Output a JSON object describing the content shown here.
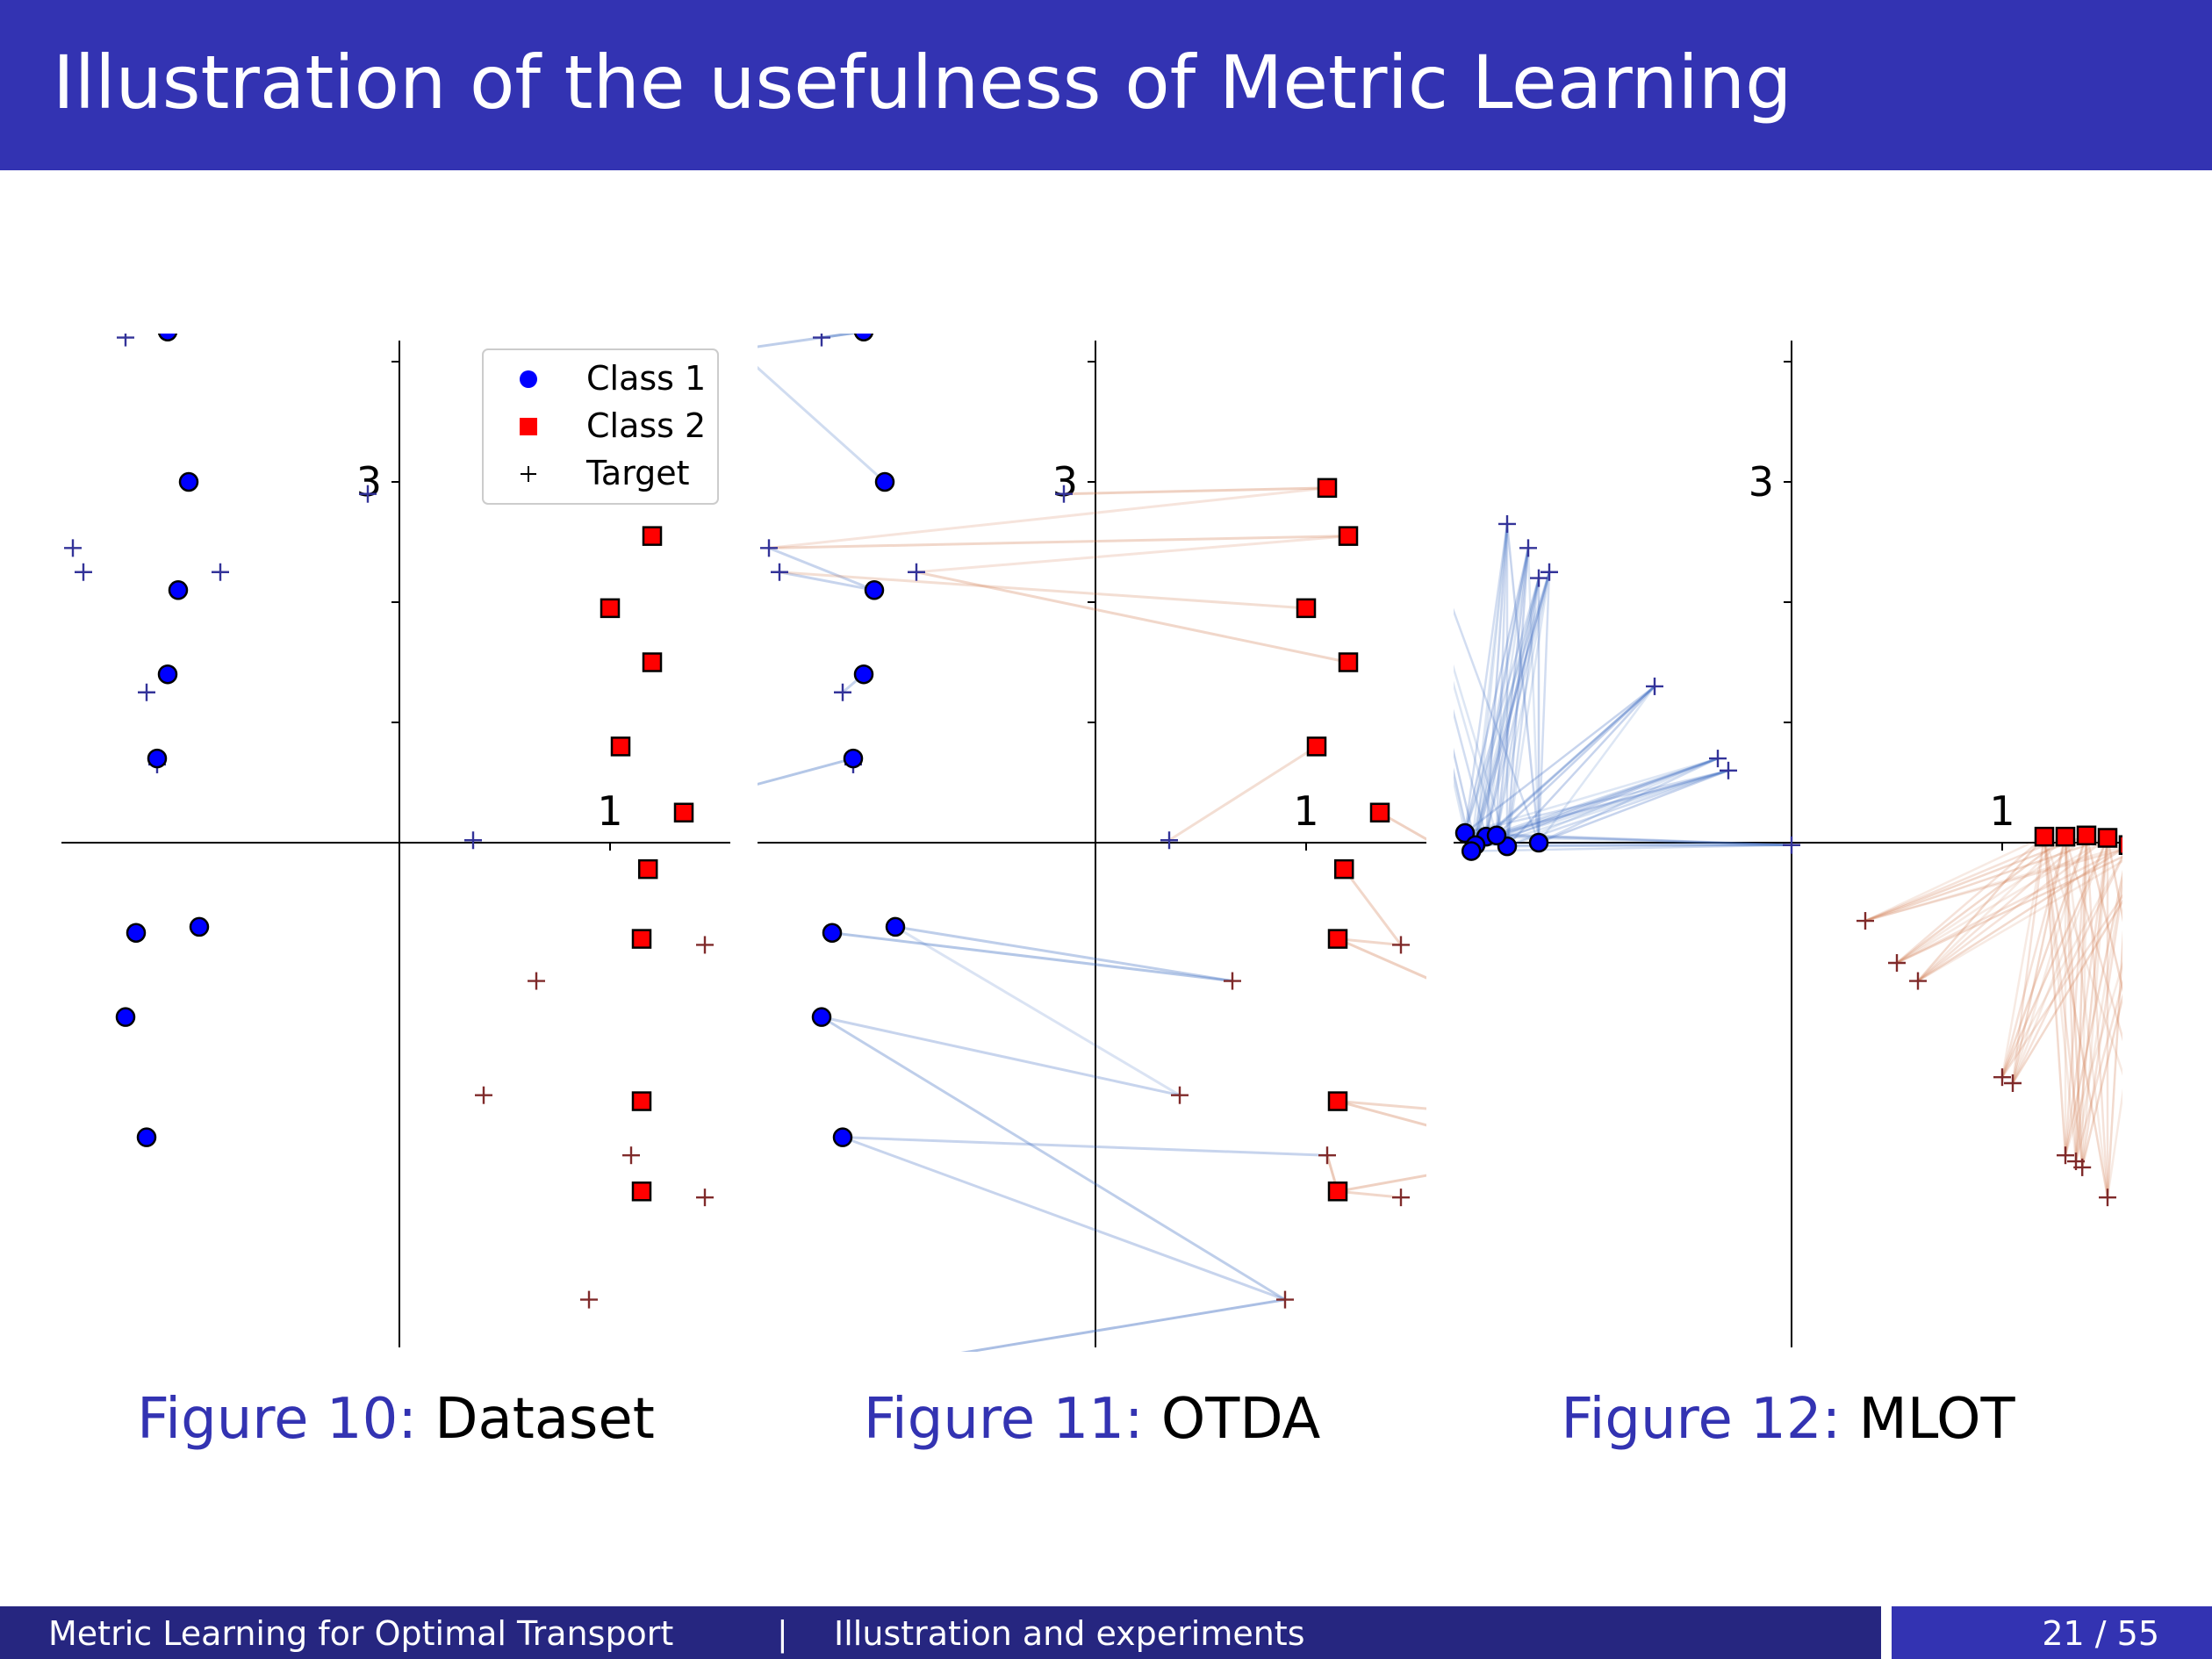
{
  "slide": {
    "title": "Illustration of the usefulness of Metric Learning"
  },
  "legend": {
    "class1": "Class 1",
    "class2": "Class 2",
    "target": "Target"
  },
  "colors": {
    "accent": "#3333b2",
    "footer_dark": "#262680",
    "class1": "#0000ff",
    "class2": "#ff0000",
    "target_blue": "#333399",
    "target_red": "#7f2a2a",
    "link_blue": "#4472c4",
    "link_red": "#d07a50"
  },
  "figures": [
    {
      "label": "Figure 10:",
      "name": "Dataset"
    },
    {
      "label": "Figure 11:",
      "name": "OTDA"
    },
    {
      "label": "Figure 12:",
      "name": "MLOT"
    }
  ],
  "footer": {
    "title": "Metric Learning for Optimal Transport",
    "separator": "|",
    "section": "Illustration and experiments",
    "page": "21 / 55"
  },
  "chart_data": [
    {
      "type": "scatter",
      "title": "Dataset",
      "tick_labels": {
        "x": [
          "1"
        ],
        "y": [
          "3"
        ]
      },
      "xlim": [
        -3.2,
        3.2
      ],
      "ylim": [
        -4.6,
        4.5
      ],
      "series": [
        {
          "name": "Class 1",
          "marker": "circle",
          "color": "#0000ff",
          "points": [
            [
              -1.1,
              4.25
            ],
            [
              -1.0,
              3.0
            ],
            [
              -1.05,
              2.1
            ],
            [
              -1.1,
              1.4
            ],
            [
              -1.15,
              0.7
            ],
            [
              -1.25,
              -0.75
            ],
            [
              -0.95,
              -0.7
            ],
            [
              -1.3,
              -1.45
            ],
            [
              -1.2,
              -2.45
            ],
            [
              -1.35,
              -4.45
            ]
          ]
        },
        {
          "name": "Class 2",
          "marker": "square",
          "color": "#ff0000",
          "points": [
            [
              1.1,
              2.95
            ],
            [
              1.2,
              2.55
            ],
            [
              1.0,
              1.95
            ],
            [
              1.2,
              1.5
            ],
            [
              1.05,
              0.8
            ],
            [
              1.35,
              0.25
            ],
            [
              1.18,
              -0.22
            ],
            [
              1.15,
              -0.8
            ],
            [
              1.15,
              -2.15
            ],
            [
              1.15,
              -2.9
            ]
          ]
        },
        {
          "name": "Target",
          "marker": "plus",
          "points_class1": [
            [
              -1.7,
              4.1
            ],
            [
              -1.3,
              4.2
            ],
            [
              -0.15,
              2.9
            ],
            [
              -1.55,
              2.45
            ],
            [
              -1.5,
              2.25
            ],
            [
              -0.85,
              2.25
            ],
            [
              -1.2,
              1.25
            ],
            [
              -1.15,
              0.65
            ],
            [
              -2.0,
              0.3
            ],
            [
              0.35,
              0.02
            ]
          ],
          "points_class2": [
            [
              2.0,
              -0.4
            ],
            [
              1.45,
              -0.85
            ],
            [
              0.65,
              -1.15
            ],
            [
              2.45,
              -1.8
            ],
            [
              0.4,
              -2.1
            ],
            [
              2.85,
              -2.4
            ],
            [
              1.1,
              -2.6
            ],
            [
              2.1,
              -2.6
            ],
            [
              1.45,
              -2.95
            ],
            [
              0.9,
              -3.8
            ]
          ]
        }
      ]
    },
    {
      "type": "scatter",
      "title": "OTDA",
      "tick_labels": {
        "x": [
          "1"
        ],
        "y": [
          "3"
        ]
      },
      "note": "Same points as Dataset with optimal-transport coupling lines between source and target points",
      "links": "source-to-target transport couplings"
    },
    {
      "type": "scatter",
      "title": "MLOT",
      "tick_labels": {
        "x": [
          "1"
        ],
        "y": [
          "3"
        ]
      },
      "series": [
        {
          "name": "Class 1",
          "marker": "circle",
          "color": "#0000ff",
          "points": [
            [
              -1.55,
              0.08
            ],
            [
              -1.45,
              0.05
            ],
            [
              -1.5,
              -0.02
            ],
            [
              -1.35,
              -0.03
            ],
            [
              -1.2,
              0.0
            ],
            [
              -1.52,
              -0.07
            ],
            [
              -1.4,
              0.06
            ]
          ]
        },
        {
          "name": "Class 2",
          "marker": "square",
          "color": "#ff0000",
          "points": [
            [
              1.2,
              0.05
            ],
            [
              1.3,
              0.05
            ],
            [
              1.5,
              0.04
            ],
            [
              1.6,
              -0.02
            ],
            [
              1.75,
              0.03
            ],
            [
              1.4,
              0.06
            ]
          ]
        },
        {
          "name": "Target",
          "marker": "plus",
          "points_class1": [
            [
              -2.05,
              4.05
            ],
            [
              -1.35,
              2.65
            ],
            [
              -1.25,
              2.45
            ],
            [
              -1.15,
              2.25
            ],
            [
              -1.2,
              2.2
            ],
            [
              -0.65,
              1.3
            ],
            [
              -0.35,
              0.7
            ],
            [
              -0.3,
              0.6
            ],
            [
              0.0,
              -0.02
            ]
          ],
          "points_class2": [
            [
              0.35,
              -0.65
            ],
            [
              0.5,
              -1.0
            ],
            [
              0.6,
              -1.15
            ],
            [
              1.0,
              -1.95
            ],
            [
              1.05,
              -2.0
            ],
            [
              1.3,
              -2.6
            ],
            [
              1.35,
              -2.65
            ],
            [
              1.38,
              -2.7
            ],
            [
              1.5,
              -2.95
            ],
            [
              1.9,
              -3.65
            ]
          ]
        }
      ]
    }
  ]
}
